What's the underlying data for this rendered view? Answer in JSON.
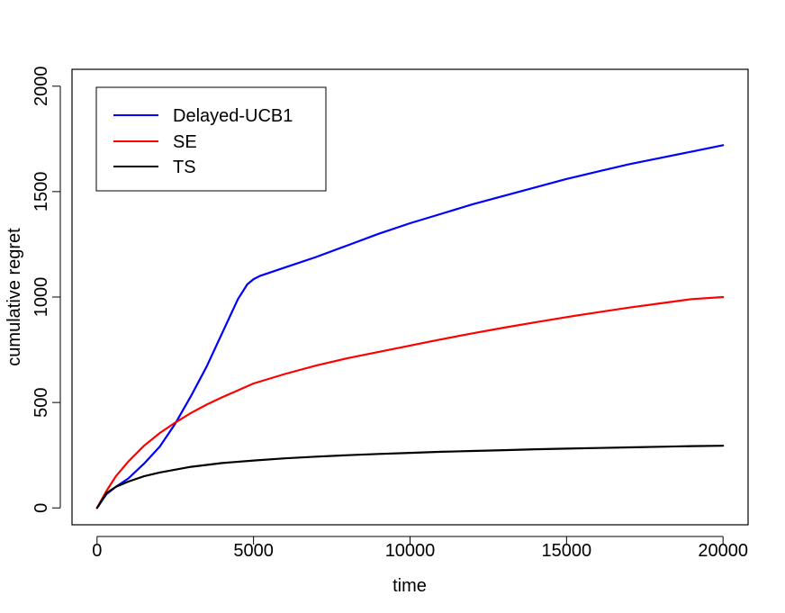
{
  "chart_data": {
    "type": "line",
    "xlabel": "time",
    "ylabel": "cumulative regret",
    "xlim": [
      -800,
      20800
    ],
    "ylim": [
      -80,
      2080
    ],
    "x_ticks": [
      0,
      5000,
      10000,
      15000,
      20000
    ],
    "x_tick_labels": [
      "0",
      "5000",
      "10000",
      "15000",
      "20000"
    ],
    "y_ticks": [
      0,
      500,
      1000,
      1500,
      2000
    ],
    "y_tick_labels": [
      "0",
      "500",
      "1000",
      "1500",
      "2000"
    ],
    "grid": false,
    "legend_position": "top-left",
    "series": [
      {
        "name": "Delayed-UCB1",
        "color": "#0000ff",
        "x": [
          0,
          300,
          600,
          1000,
          1500,
          2000,
          2500,
          3000,
          3500,
          4000,
          4500,
          4800,
          5000,
          5200,
          5500,
          6000,
          7000,
          8000,
          9000,
          10000,
          11000,
          12000,
          13000,
          14000,
          15000,
          16000,
          17000,
          18000,
          19000,
          20000
        ],
        "y": [
          0,
          65,
          100,
          140,
          210,
          290,
          400,
          530,
          670,
          830,
          990,
          1060,
          1085,
          1100,
          1115,
          1140,
          1190,
          1245,
          1300,
          1350,
          1395,
          1440,
          1480,
          1520,
          1560,
          1595,
          1630,
          1660,
          1690,
          1720
        ]
      },
      {
        "name": "SE",
        "color": "#ff0000",
        "x": [
          0,
          300,
          600,
          1000,
          1500,
          2000,
          2500,
          3000,
          3500,
          4000,
          5000,
          6000,
          7000,
          8000,
          9000,
          10000,
          11000,
          12000,
          13000,
          14000,
          15000,
          16000,
          17000,
          18000,
          19000,
          20000
        ],
        "y": [
          0,
          80,
          150,
          220,
          295,
          355,
          405,
          450,
          490,
          525,
          590,
          635,
          675,
          710,
          740,
          770,
          800,
          828,
          855,
          880,
          905,
          928,
          950,
          970,
          990,
          1000
        ]
      },
      {
        "name": "TS",
        "color": "#000000",
        "x": [
          0,
          300,
          600,
          1000,
          1500,
          2000,
          3000,
          4000,
          5000,
          6000,
          7000,
          8000,
          9000,
          10000,
          11000,
          12000,
          13000,
          14000,
          15000,
          16000,
          17000,
          18000,
          19000,
          20000
        ],
        "y": [
          0,
          70,
          100,
          125,
          150,
          168,
          195,
          213,
          225,
          235,
          243,
          250,
          256,
          261,
          266,
          270,
          274,
          278,
          281,
          284,
          287,
          290,
          293,
          295
        ]
      }
    ]
  }
}
